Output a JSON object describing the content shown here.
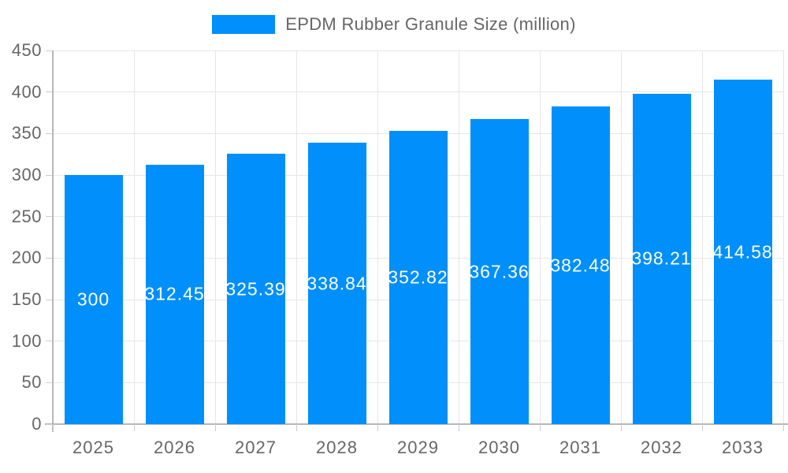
{
  "chart_data": {
    "type": "bar",
    "title": "EPDM Rubber Granule Size (million)",
    "categories": [
      "2025",
      "2026",
      "2027",
      "2028",
      "2029",
      "2030",
      "2031",
      "2032",
      "2033"
    ],
    "values": [
      300,
      312.45,
      325.39,
      338.84,
      352.82,
      367.36,
      382.48,
      398.21,
      414.58
    ],
    "xlabel": "",
    "ylabel": "",
    "ylim": [
      0,
      450
    ],
    "ytick_step": 50,
    "grid": "on",
    "legend_position": "top-center",
    "value_labels": "white, centered inside bars"
  },
  "colors": {
    "bar": "#008FFB",
    "grid": "#e6e6e6",
    "axis": "#b7b7b7",
    "tick": "#cccccc",
    "label": "#666666",
    "value_label": "#ffffff",
    "background": "#ffffff"
  }
}
